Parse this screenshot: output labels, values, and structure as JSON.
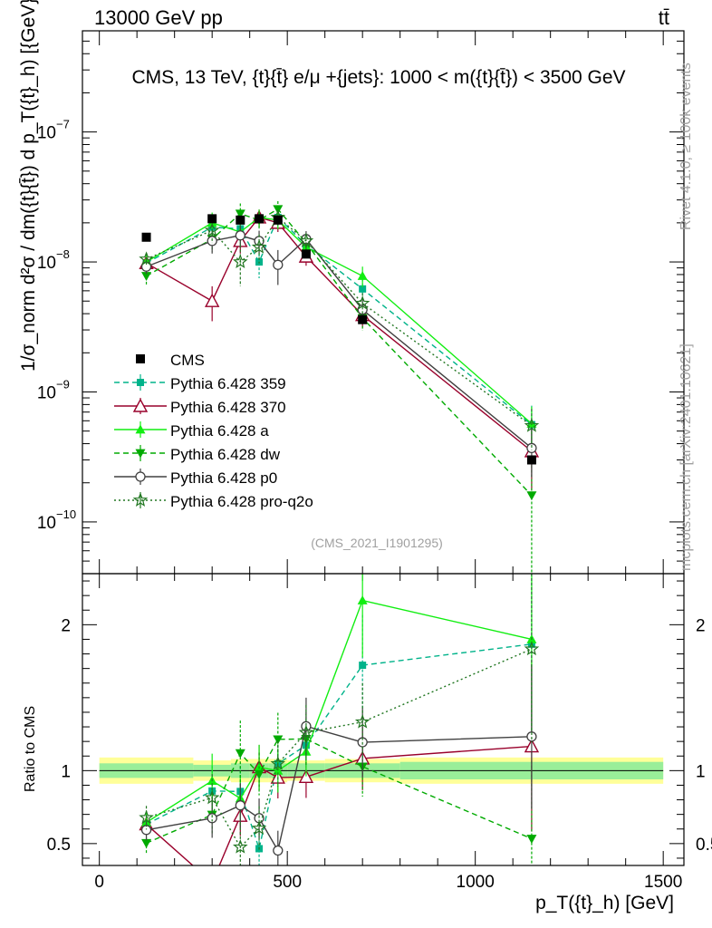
{
  "header": {
    "left": "13000 GeV pp",
    "right": "tt̄"
  },
  "side_labels": {
    "rivet": "Rivet 4.1.0, ≥ 100k events",
    "mcplots": "mcplots.cern.ch [arXiv:2401.10621]"
  },
  "analysis_id": "(CMS_2021_I1901295)",
  "chart_data": {
    "type": "line",
    "title": "CMS, 13 TeV, {t}{t̄} e/μ +{jets}: 1000 < m({t}{t̄}) < 3500 GeV",
    "xlabel": "p_T({t}_h) [GeV]",
    "ylabel": "1/σ_norm d²σ / dm({t}{t̄}) d p_T({t}_h) [{GeV}^-2]",
    "ratio_ylabel": "Ratio to CMS",
    "xlim": [
      -45,
      1555
    ],
    "ylim_log": [
      4e-11,
      6e-07
    ],
    "ratio_ylim": [
      0.35,
      2.35
    ],
    "y_ticks": [
      {
        "value": 1e-10,
        "label": "10",
        "exp": "−10"
      },
      {
        "value": 1e-09,
        "label": "10",
        "exp": "−9"
      },
      {
        "value": 1e-08,
        "label": "10",
        "exp": "−8"
      },
      {
        "value": 1e-07,
        "label": "10",
        "exp": "−7"
      }
    ],
    "x_ticks": [
      0,
      500,
      1000,
      1500
    ],
    "ratio_ticks": [
      {
        "value": 0.5,
        "label": "0.5"
      },
      {
        "value": 1,
        "label": "1"
      },
      {
        "value": 2,
        "label": "2"
      }
    ],
    "bins": [
      [
        0,
        250
      ],
      [
        250,
        350
      ],
      [
        350,
        400
      ],
      [
        400,
        450
      ],
      [
        450,
        500
      ],
      [
        500,
        600
      ],
      [
        600,
        800
      ],
      [
        800,
        1500
      ]
    ],
    "x": [
      125,
      300,
      375,
      425,
      475,
      550,
      700,
      1150
    ],
    "data": {
      "name": "CMS",
      "values": [
        1.55e-08,
        2.15e-08,
        2.1e-08,
        2.15e-08,
        2.1e-08,
        1.15e-08,
        3.6e-09,
        3e-10
      ],
      "rel_err_in": [
        0.05,
        0.04,
        0.05,
        0.05,
        0.05,
        0.05,
        0.05,
        0.06
      ],
      "rel_err_out": [
        0.09,
        0.07,
        0.08,
        0.08,
        0.08,
        0.07,
        0.08,
        0.09
      ]
    },
    "series": [
      {
        "name": "Pythia 6.428 359",
        "color": "#00b38a",
        "dash": "6,4",
        "marker": "square",
        "values": [
          9.8e-09,
          1.85e-08,
          1.8e-08,
          1e-08,
          2.2e-08,
          1.35e-08,
          6.2e-09,
          5.6e-10
        ],
        "err": [
          0.12,
          0.2,
          0.2,
          0.25,
          0.15,
          0.15,
          0.2,
          0.4
        ]
      },
      {
        "name": "Pythia 6.428 370",
        "color": "#99002b",
        "dash": "",
        "marker": "triangle-open",
        "values": [
          9.8e-09,
          5e-09,
          1.45e-08,
          2.2e-08,
          2e-08,
          1.1e-08,
          3.9e-09,
          3.5e-10
        ],
        "err": [
          0.12,
          0.3,
          0.2,
          0.15,
          0.15,
          0.15,
          0.2,
          0.5
        ]
      },
      {
        "name": "Pythia 6.428 a",
        "color": "#11ee11",
        "dash": "",
        "marker": "triangle",
        "values": [
          1e-08,
          2e-08,
          1.7e-08,
          2.2e-08,
          2.1e-08,
          1.3e-08,
          7.8e-09,
          5.7e-10
        ],
        "err": [
          0.12,
          0.2,
          0.2,
          0.15,
          0.15,
          0.15,
          0.18,
          0.35
        ]
      },
      {
        "name": "Pythia 6.428 dw",
        "color": "#00aa00",
        "dash": "6,4",
        "marker": "triangle-down",
        "values": [
          7.8e-09,
          1.5e-08,
          2.35e-08,
          2.1e-08,
          2.55e-08,
          1.4e-08,
          3.7e-09,
          1.6e-10
        ],
        "err": [
          0.15,
          0.2,
          0.2,
          0.15,
          0.15,
          0.15,
          0.2,
          1.0
        ]
      },
      {
        "name": "Pythia 6.428 p0",
        "color": "#404040",
        "dash": "",
        "marker": "circle-open",
        "values": [
          9.2e-09,
          1.45e-08,
          1.6e-08,
          1.45e-08,
          9.5e-09,
          1.5e-08,
          4.3e-09,
          3.7e-10
        ],
        "err": [
          0.12,
          0.2,
          0.2,
          0.2,
          0.3,
          0.15,
          0.2,
          0.4
        ]
      },
      {
        "name": "Pythia 6.428 pro-q2o",
        "color": "#227722",
        "dash": "2,3",
        "marker": "star",
        "values": [
          1.05e-08,
          1.75e-08,
          1e-08,
          1.3e-08,
          2.2e-08,
          1.45e-08,
          4.8e-09,
          5.5e-10
        ],
        "err": [
          0.12,
          0.2,
          0.35,
          0.25,
          0.15,
          0.15,
          0.2,
          0.35
        ]
      }
    ]
  }
}
